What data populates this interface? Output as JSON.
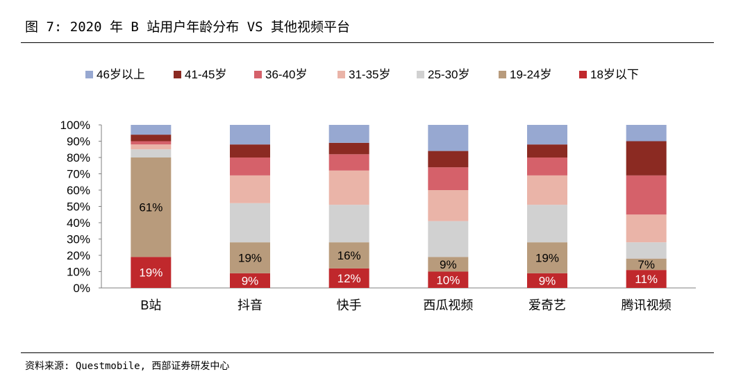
{
  "title": "图 7: 2020 年 B 站用户年龄分布 VS 其他视频平台",
  "source": "资料来源: Questmobile, 西部证券研发中心",
  "chart_data": {
    "type": "bar",
    "stacked": true,
    "percent": true,
    "categories": [
      "B站",
      "抖音",
      "快手",
      "西瓜视频",
      "爱奇艺",
      "腾讯视频"
    ],
    "y_ticks": [
      "0%",
      "10%",
      "20%",
      "30%",
      "40%",
      "50%",
      "60%",
      "70%",
      "80%",
      "90%",
      "100%"
    ],
    "ylim": [
      0,
      100
    ],
    "grid": false,
    "legend_position": "top",
    "series": [
      {
        "name": "18岁以下",
        "color": "#c0282c",
        "values": [
          19,
          9,
          12,
          10,
          9,
          11
        ],
        "labels": [
          "19%",
          "9%",
          "12%",
          "10%",
          "9%",
          "11%"
        ]
      },
      {
        "name": "19-24岁",
        "color": "#b89b7c",
        "values": [
          61,
          19,
          16,
          9,
          19,
          7
        ],
        "labels": [
          "61%",
          "19%",
          "16%",
          "9%",
          "19%",
          "7%"
        ]
      },
      {
        "name": "25-30岁",
        "color": "#d1d1d1",
        "values": [
          5,
          24,
          23,
          22,
          23,
          10
        ]
      },
      {
        "name": "31-35岁",
        "color": "#eab4a8",
        "values": [
          3,
          17,
          21,
          19,
          18,
          17
        ]
      },
      {
        "name": "36-40岁",
        "color": "#d5616a",
        "values": [
          2,
          11,
          10,
          14,
          11,
          24
        ]
      },
      {
        "name": "41-45岁",
        "color": "#8b2a22",
        "values": [
          4,
          8,
          7,
          10,
          8,
          21
        ]
      },
      {
        "name": "46岁以上",
        "color": "#97a8d1",
        "values": [
          6,
          12,
          11,
          16,
          12,
          10
        ]
      }
    ],
    "legend_order": [
      6,
      5,
      4,
      3,
      2,
      1,
      0
    ],
    "label_series": [
      0,
      1
    ]
  }
}
